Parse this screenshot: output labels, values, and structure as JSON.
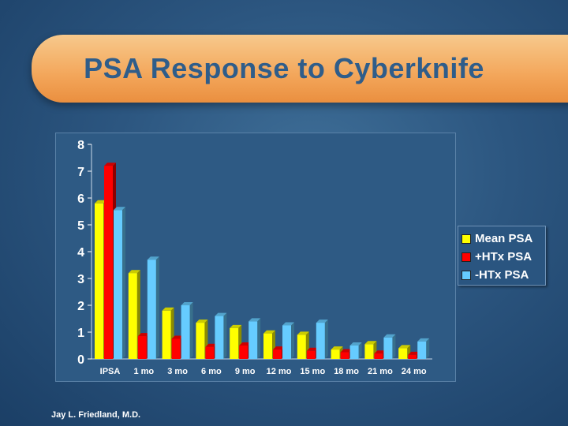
{
  "slide": {
    "title": "PSA Response to Cyberknife",
    "footer": "Jay L. Friedland, M.D."
  },
  "chart_data": {
    "type": "bar",
    "categories": [
      "IPSA",
      "1 mo",
      "3 mo",
      "6 mo",
      "9 mo",
      "12 mo",
      "15 mo",
      "18 mo",
      "21 mo",
      "24 mo"
    ],
    "series": [
      {
        "name": "Mean PSA",
        "color": "#ffff00",
        "values": [
          5.8,
          3.2,
          1.8,
          1.35,
          1.15,
          0.95,
          0.9,
          0.35,
          0.55,
          0.4
        ]
      },
      {
        "name": "+HTx PSA",
        "color": "#ff0000",
        "values": [
          7.2,
          0.85,
          0.75,
          0.45,
          0.5,
          0.35,
          0.3,
          0.25,
          0.2,
          0.15
        ]
      },
      {
        "name": "-HTx PSA",
        "color": "#66ccff",
        "values": [
          5.55,
          3.7,
          2.0,
          1.6,
          1.4,
          1.25,
          1.35,
          0.5,
          0.8,
          0.65
        ]
      }
    ],
    "yticks": [
      0,
      1,
      2,
      3,
      4,
      5,
      6,
      7,
      8
    ],
    "ylim": [
      0,
      8
    ],
    "legend": "right",
    "grid": false
  }
}
